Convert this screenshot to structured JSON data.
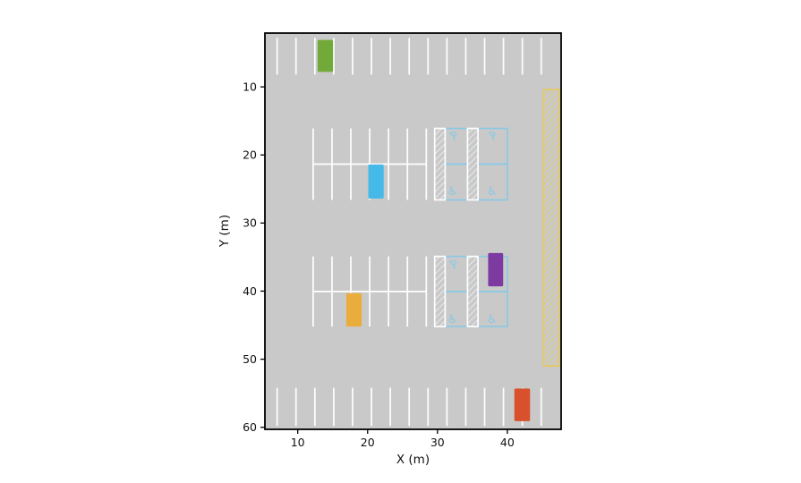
{
  "figure": {
    "outer_background": "#ffffff"
  },
  "chart_data": {
    "type": "scatter",
    "subtype": "parking-lot-occupancy-map",
    "title": "",
    "xlabel": "X (m)",
    "ylabel": "Y (m)",
    "x_ticks": [
      10,
      20,
      30,
      40
    ],
    "y_ticks": [
      10,
      20,
      30,
      40,
      50,
      60
    ],
    "xlim": [
      5.3,
      47.7
    ],
    "ylim": [
      2.1,
      60.3
    ],
    "y_axis_inverted": true,
    "grid": false,
    "legend": false,
    "wheelchair_glyph": "♿",
    "colors": {
      "lot_surface": "#c9c9c9",
      "stall_line": "#ffffff",
      "handicap_blue": "#85c9e6",
      "restricted_yellow": "#e7c95a",
      "frame": "#000000",
      "tick_text": "#111111"
    },
    "stall_rows": [
      {
        "name": "top-edge-stalls",
        "x_start": 7.05,
        "x_end": 44.85,
        "spacing": 2.7,
        "y_top": 2.8,
        "y_bottom": 8.2,
        "divider_y": null
      },
      {
        "name": "row1-left-stalls",
        "x_start": 12.2,
        "x_end": 28.4,
        "spacing": 2.7,
        "y_top": 16.1,
        "y_bottom": 26.6,
        "divider_y": 21.35
      },
      {
        "name": "row2-left-stalls",
        "x_start": 12.2,
        "x_end": 28.4,
        "spacing": 2.7,
        "y_top": 34.9,
        "y_bottom": 45.2,
        "divider_y": 40.05
      },
      {
        "name": "bottom-edge-stalls",
        "x_start": 7.05,
        "x_end": 44.85,
        "spacing": 2.7,
        "y_top": 54.2,
        "y_bottom": 59.8,
        "divider_y": null
      }
    ],
    "handicap_blocks": [
      {
        "y_top": 16.1,
        "y_mid": 21.35,
        "y_bottom": 26.6,
        "aisles": [
          [
            29.6,
            31.1
          ],
          [
            34.3,
            35.8
          ]
        ],
        "stalls": [
          [
            31.1,
            34.3
          ],
          [
            35.8,
            40.0
          ]
        ],
        "icons": [
          {
            "x": 32.2,
            "y": 17.0,
            "rot": 180
          },
          {
            "x": 37.8,
            "y": 17.0,
            "rot": 180
          },
          {
            "x": 32.2,
            "y": 25.4,
            "rot": 0
          },
          {
            "x": 37.8,
            "y": 25.4,
            "rot": 0
          }
        ]
      },
      {
        "y_top": 34.9,
        "y_mid": 40.05,
        "y_bottom": 45.2,
        "aisles": [
          [
            29.6,
            31.1
          ],
          [
            34.3,
            35.8
          ]
        ],
        "stalls": [
          [
            31.1,
            34.3
          ],
          [
            35.8,
            40.0
          ]
        ],
        "icons": [
          {
            "x": 32.2,
            "y": 35.9,
            "rot": 180
          },
          {
            "x": 32.2,
            "y": 44.2,
            "rot": 0
          },
          {
            "x": 37.8,
            "y": 44.2,
            "rot": 0
          }
        ]
      }
    ],
    "restricted_zone": {
      "x1": 45.2,
      "y1": 10.4,
      "x2": 47.5,
      "y2": 51.0
    },
    "cars": [
      {
        "id": "car-green",
        "color": "#72aa3a",
        "x": 12.85,
        "y": 3.1,
        "w": 2.2,
        "h": 4.7
      },
      {
        "id": "car-cyan",
        "color": "#45b9e8",
        "x": 20.1,
        "y": 21.4,
        "w": 2.2,
        "h": 5.0
      },
      {
        "id": "car-purple",
        "color": "#7d3aa0",
        "x": 37.25,
        "y": 34.4,
        "w": 2.15,
        "h": 4.9
      },
      {
        "id": "car-amber",
        "color": "#e9ad3c",
        "x": 16.95,
        "y": 40.3,
        "w": 2.2,
        "h": 4.9
      },
      {
        "id": "car-red",
        "color": "#d9512c",
        "x": 41.0,
        "y": 54.3,
        "w": 2.25,
        "h": 4.8
      }
    ]
  }
}
